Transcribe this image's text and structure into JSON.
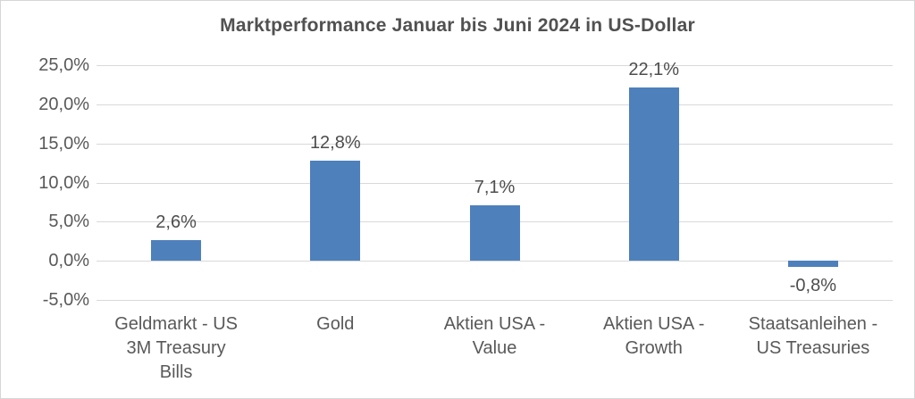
{
  "chart_data": {
    "type": "bar",
    "title": "Marktperformance Januar bis Juni 2024 in US-Dollar",
    "categories": [
      "Geldmarkt - US\n3M Treasury\nBills",
      "Gold",
      "Aktien USA -\nValue",
      "Aktien USA -\nGrowth",
      "Staatsanleihen -\nUS Treasuries"
    ],
    "values": [
      2.6,
      12.8,
      7.1,
      22.1,
      -0.8
    ],
    "value_labels": [
      "2,6%",
      "12,8%",
      "7,1%",
      "22,1%",
      "-0,8%"
    ],
    "ylim": [
      -5,
      25
    ],
    "y_ticks": [
      25,
      20,
      15,
      10,
      5,
      0,
      -5
    ],
    "y_tick_labels": [
      "25,0%",
      "20,0%",
      "15,0%",
      "10,0%",
      "5,0%",
      "0,0%",
      "-5,0%"
    ],
    "grid": true,
    "legend": false,
    "colors": {
      "bar": "#4E80BC",
      "gridline": "#D9D9D9",
      "title_text": "#515151",
      "axis_text": "#595959",
      "value_label_text": "#4D4D4D",
      "frame_border": "#D6D6D6",
      "background": "#FFFFFF"
    }
  }
}
